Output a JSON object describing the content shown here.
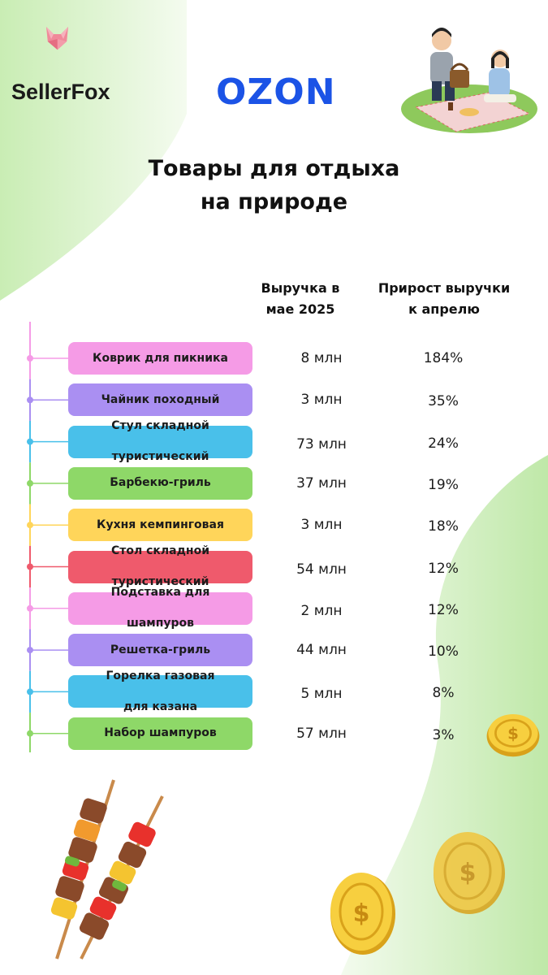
{
  "brand": {
    "name": "SellerFox"
  },
  "marketplace": {
    "name": "OZON"
  },
  "title_lines": [
    "Товары для отдыха",
    "на природе"
  ],
  "columns": {
    "revenue": [
      "Выручка в",
      "мае 2025"
    ],
    "growth": [
      "Прирост выручки",
      "к апрелю"
    ]
  },
  "colors": {
    "pink": "#f59be6",
    "purple": "#aa8ff2",
    "blue": "#49c0ea",
    "green": "#8ed868",
    "yellow": "#ffd55a",
    "red": "#ef5a6c",
    "ozon_blue": "#1b53e6",
    "bg_green": "#d9f2c8"
  },
  "chart_data": {
    "type": "table",
    "rows": [
      {
        "lines": [
          "Коврик для пикника"
        ],
        "revenue": "8 млн",
        "growth": "184%",
        "color": "pink"
      },
      {
        "lines": [
          "Чайник походный"
        ],
        "revenue": "3 млн",
        "growth": "35%",
        "color": "purple"
      },
      {
        "lines": [
          "Стул складной",
          "туристический"
        ],
        "revenue": "73 млн",
        "growth": "24%",
        "color": "blue"
      },
      {
        "lines": [
          "Барбекю-гриль"
        ],
        "revenue": "37 млн",
        "growth": "19%",
        "color": "green"
      },
      {
        "lines": [
          "Кухня кемпинговая"
        ],
        "revenue": "3 млн",
        "growth": "18%",
        "color": "yellow"
      },
      {
        "lines": [
          "Стол складной",
          "туристический"
        ],
        "revenue": "54 млн",
        "growth": "12%",
        "color": "red"
      },
      {
        "lines": [
          "Подставка для",
          "шампуров"
        ],
        "revenue": "2 млн",
        "growth": "12%",
        "color": "pink"
      },
      {
        "lines": [
          "Решетка-гриль"
        ],
        "revenue": "44 млн",
        "growth": "10%",
        "color": "purple"
      },
      {
        "lines": [
          "Горелка газовая",
          "для казана"
        ],
        "revenue": "5 млн",
        "growth": "8%",
        "color": "blue"
      },
      {
        "lines": [
          "Набор шампуров"
        ],
        "revenue": "57 млн",
        "growth": "3%",
        "color": "green"
      }
    ]
  },
  "decorations": {
    "logo_icon": "fox-head-icon",
    "illustration": "picnic-couple-illustration",
    "bottom_left": "kebab-skewers-illustration",
    "coins": "gold-dollar-coin-icon"
  }
}
